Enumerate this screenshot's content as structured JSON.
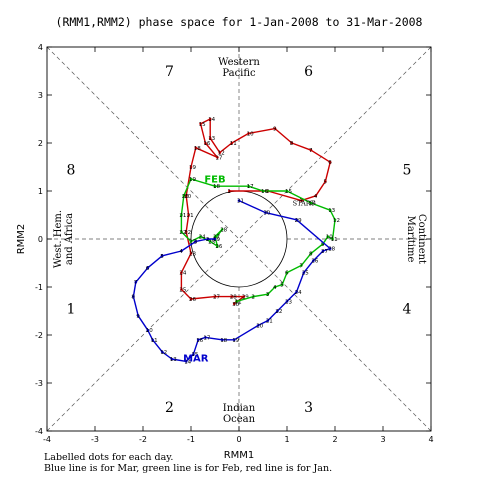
{
  "chart_data": {
    "type": "line",
    "title": "(RMM1,RMM2) phase space for  1-Jan-2008 to 31-Mar-2008",
    "xlabel": "RMM1",
    "ylabel": "RMM2",
    "xlim": [
      -4,
      4
    ],
    "ylim": [
      -4,
      4
    ],
    "x_ticks": [
      "-4",
      "-3",
      "-2",
      "-1",
      "0",
      "1",
      "2",
      "3",
      "4"
    ],
    "y_ticks": [
      "-4",
      "-3",
      "-2",
      "-1",
      "0",
      "1",
      "2",
      "3",
      "4"
    ],
    "phases": [
      {
        "label": "1",
        "x": -3.5,
        "y": -1.45
      },
      {
        "label": "2",
        "x": -1.45,
        "y": -3.5
      },
      {
        "label": "3",
        "x": 1.45,
        "y": -3.5
      },
      {
        "label": "4",
        "x": 3.5,
        "y": -1.45
      },
      {
        "label": "5",
        "x": 3.5,
        "y": 1.45
      },
      {
        "label": "6",
        "x": 1.45,
        "y": 3.5
      },
      {
        "label": "7",
        "x": -1.45,
        "y": 3.5
      },
      {
        "label": "8",
        "x": -3.5,
        "y": 1.45
      }
    ],
    "regions": {
      "top": [
        "Western",
        "Pacific"
      ],
      "bottom": [
        "Indian",
        "Ocean"
      ],
      "left": [
        "West. Hem.",
        "and Africa"
      ],
      "right": [
        "Maritime",
        "Continent"
      ]
    },
    "colors": {
      "Jan": "#cc0000",
      "Feb": "#00bb00",
      "Mar": "#0000cc",
      "guides": "#555555"
    },
    "series": [
      {
        "name": "Jan",
        "points": [
          [
            -0.2,
            1.0
          ],
          [
            0.6,
            1.0
          ],
          [
            1.3,
            0.8
          ],
          [
            1.6,
            0.9
          ],
          [
            1.8,
            1.2
          ],
          [
            1.9,
            1.6
          ],
          [
            1.5,
            1.85
          ],
          [
            1.1,
            2.0
          ],
          [
            0.75,
            2.3
          ],
          [
            0.2,
            2.2
          ],
          [
            -0.15,
            2.0
          ],
          [
            -0.4,
            1.8
          ],
          [
            -0.6,
            2.1
          ],
          [
            -0.6,
            2.5
          ],
          [
            -0.8,
            2.4
          ],
          [
            -0.7,
            2.0
          ],
          [
            -0.45,
            1.7
          ],
          [
            -0.9,
            1.9
          ],
          [
            -1.0,
            1.5
          ],
          [
            -1.1,
            0.9
          ],
          [
            -1.05,
            0.5
          ],
          [
            -1.1,
            0.15
          ],
          [
            -1.0,
            -0.3
          ],
          [
            -1.2,
            -0.7
          ],
          [
            -1.2,
            -1.05
          ],
          [
            -1.0,
            -1.25
          ],
          [
            -0.5,
            -1.2
          ],
          [
            -0.15,
            -1.2
          ],
          [
            0.1,
            -1.2
          ],
          [
            -0.1,
            -1.35
          ],
          [
            -0.05,
            -1.3
          ]
        ],
        "labels": [
          "1",
          "2",
          "3",
          "4",
          "5",
          "6",
          "7",
          "8",
          "9",
          "10",
          "11",
          "12",
          "13",
          "14",
          "15",
          "16",
          "17",
          "18",
          "19",
          "20",
          "21",
          "22",
          "23",
          "24",
          "25",
          "26",
          "27",
          "28",
          "29",
          "30",
          "31"
        ]
      },
      {
        "name": "Feb",
        "points": [
          [
            -0.05,
            -1.3
          ],
          [
            0.3,
            -1.2
          ],
          [
            0.6,
            -1.15
          ],
          [
            0.75,
            -1.0
          ],
          [
            0.9,
            -0.95
          ],
          [
            1.0,
            -0.7
          ],
          [
            1.3,
            -0.55
          ],
          [
            1.5,
            -0.3
          ],
          [
            1.75,
            -0.1
          ],
          [
            1.85,
            0.05
          ],
          [
            1.95,
            0.0
          ],
          [
            2.0,
            0.4
          ],
          [
            1.9,
            0.6
          ],
          [
            1.5,
            0.75
          ],
          [
            1.0,
            1.0
          ],
          [
            0.5,
            1.0
          ],
          [
            0.2,
            1.1
          ],
          [
            -0.5,
            1.1
          ],
          [
            -1.0,
            1.25
          ],
          [
            -1.15,
            0.9
          ],
          [
            -1.2,
            0.5
          ],
          [
            -1.2,
            0.15
          ],
          [
            -1.0,
            -0.05
          ],
          [
            -0.8,
            0.05
          ],
          [
            -0.6,
            -0.05
          ],
          [
            -0.45,
            -0.15
          ],
          [
            -0.5,
            0.05
          ],
          [
            -0.35,
            0.2
          ],
          [
            -0.5,
            0.0
          ]
        ],
        "labels": [
          "1",
          "2",
          "3",
          "4",
          "5",
          "6",
          "7",
          "8",
          "9",
          "10",
          "11",
          "12",
          "13",
          "14",
          "15",
          "16",
          "17",
          "18",
          "19",
          "20",
          "21",
          "22",
          "23",
          "24",
          "25",
          "26",
          "27",
          "28",
          "29"
        ]
      },
      {
        "name": "Mar",
        "points": [
          [
            -0.5,
            0.0
          ],
          [
            -0.65,
            0.0
          ],
          [
            -0.9,
            -0.05
          ],
          [
            -1.2,
            -0.25
          ],
          [
            -1.6,
            -0.35
          ],
          [
            -1.9,
            -0.6
          ],
          [
            -2.15,
            -0.9
          ],
          [
            -2.2,
            -1.2
          ],
          [
            -2.1,
            -1.6
          ],
          [
            -1.9,
            -1.9
          ],
          [
            -1.8,
            -2.1
          ],
          [
            -1.6,
            -2.35
          ],
          [
            -1.4,
            -2.5
          ],
          [
            -1.1,
            -2.55
          ],
          [
            -0.95,
            -2.4
          ],
          [
            -0.85,
            -2.1
          ],
          [
            -0.7,
            -2.05
          ],
          [
            -0.35,
            -2.1
          ],
          [
            -0.1,
            -2.1
          ],
          [
            0.4,
            -1.8
          ],
          [
            0.6,
            -1.7
          ],
          [
            0.8,
            -1.5
          ],
          [
            1.0,
            -1.3
          ],
          [
            1.2,
            -1.1
          ],
          [
            1.35,
            -0.7
          ],
          [
            1.55,
            -0.45
          ],
          [
            1.75,
            -0.25
          ],
          [
            1.9,
            -0.2
          ],
          [
            1.2,
            0.4
          ],
          [
            0.55,
            0.55
          ],
          [
            0.0,
            0.8
          ]
        ],
        "labels": [
          "1",
          "2",
          "3",
          "4",
          "5",
          "6",
          "7",
          "8",
          "9",
          "10",
          "11",
          "12",
          "13",
          "14",
          "15",
          "16",
          "17",
          "18",
          "19",
          "20",
          "21",
          "22",
          "23",
          "24",
          "25",
          "26",
          "27",
          "28",
          "29",
          "30",
          "31"
        ]
      }
    ],
    "month_labels": [
      {
        "text": "FEB",
        "x": -0.5,
        "y": 1.18
      },
      {
        "text": "MAR",
        "x": -0.9,
        "y": -2.55
      }
    ],
    "start_label": {
      "text": "START",
      "x": 1.35,
      "y": 0.7
    },
    "notes": [
      "Labelled dots for each day.",
      "Blue line is for Mar, green line is for Feb, red line is for Jan."
    ]
  }
}
